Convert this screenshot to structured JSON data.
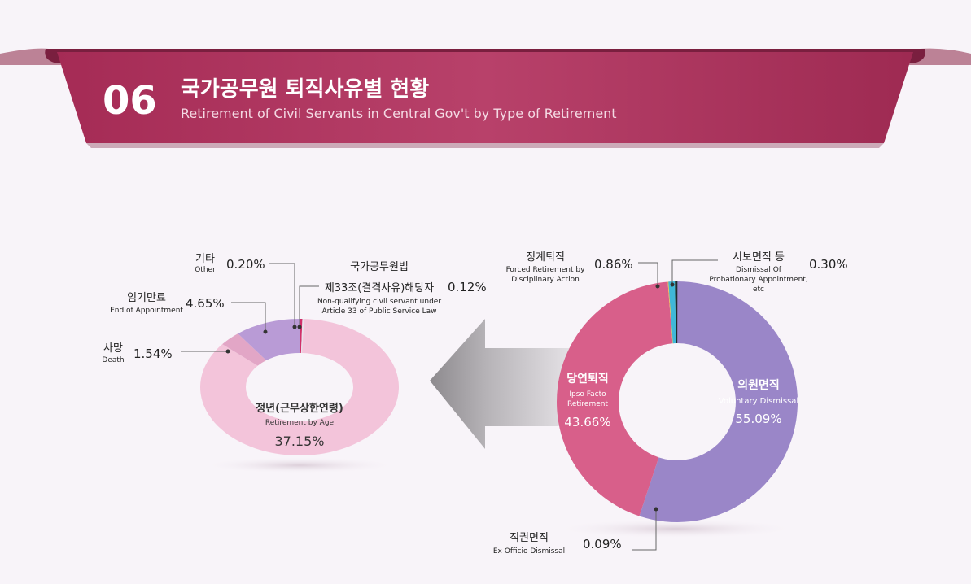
{
  "header": {
    "number": "06",
    "title_ko": "국가공무원 퇴직사유별 현황",
    "title_en": "Retirement of Civil Servants in Central Gov't by Type of Retirement"
  },
  "colors": {
    "banner": "#b73a63",
    "voluntary": "#9a86c8",
    "ipso_facto": "#d85f8a",
    "age": "#f3c4da",
    "appointment": "#b99bd6",
    "death": "#e2a6c6",
    "disqualified": "#d0306a"
  },
  "chart_data": [
    {
      "type": "pie",
      "donut": true,
      "categories": [
        "의원면직",
        "당연퇴직",
        "직권면직",
        "징계퇴직",
        "시보면직 등"
      ],
      "categories_en": [
        "Voluntary Dismissal",
        "Ipso Facto Retirement",
        "Ex Officio Dismissal",
        "Forced Retirement by Disciplinary Action",
        "Dismissal Of Probationary Appointment, etc"
      ],
      "values": [
        55.09,
        43.66,
        0.09,
        0.86,
        0.3
      ],
      "labels": [
        "55.09%",
        "43.66%",
        "0.09%",
        "0.86%",
        "0.30%"
      ],
      "colors": [
        "#9a86c8",
        "#d85f8a",
        "#f2c14e",
        "#3fb8d8",
        "#1d2e2e"
      ]
    },
    {
      "type": "pie",
      "donut": true,
      "categories": [
        "정년(근무상한연령)",
        "사망",
        "임기만료",
        "기타",
        "국가공무원법 제33조(결격사유)해당자"
      ],
      "categories_en": [
        "Retirement by Age",
        "Death",
        "End of Appointment",
        "Other",
        "Non-qualifying civil servant under Article 33 of Public Service Law"
      ],
      "values": [
        37.15,
        1.54,
        4.65,
        0.2,
        0.12
      ],
      "labels": [
        "37.15%",
        "1.54%",
        "4.65%",
        "0.20%",
        "0.12%"
      ],
      "colors": [
        "#f3c4da",
        "#e2a6c6",
        "#b99bd6",
        "#d0306a",
        "#e8e0ea"
      ]
    }
  ],
  "labels_text": {
    "voluntary_ko": "의원면직",
    "voluntary_en": "Voluntary Dismissal",
    "ipso_ko": "당연퇴직",
    "ipso_en_1": "Ipso Facto",
    "ipso_en_2": "Retirement",
    "exofficio_ko": "직권면직",
    "exofficio_en": "Ex Officio Dismissal",
    "forced_ko": "징계퇴직",
    "forced_en_1": "Forced Retirement by",
    "forced_en_2": "Disciplinary Action",
    "prob_ko": "시보면직 등",
    "prob_en_1": "Dismissal Of",
    "prob_en_2": "Probationary Appointment,",
    "prob_en_3": "etc",
    "age_ko": "정년(근무상한연령)",
    "age_en": "Retirement by Age",
    "death_ko": "사망",
    "death_en": "Death",
    "appt_ko": "임기만료",
    "appt_en": "End of Appointment",
    "other_ko": "기타",
    "other_en": "Other",
    "art33_ko_1": "국가공무원법",
    "art33_ko_2": "제33조(결격사유)해당자",
    "art33_en_1": "Non-qualifying civil servant under",
    "art33_en_2": "Article 33 of Public Service Law"
  }
}
